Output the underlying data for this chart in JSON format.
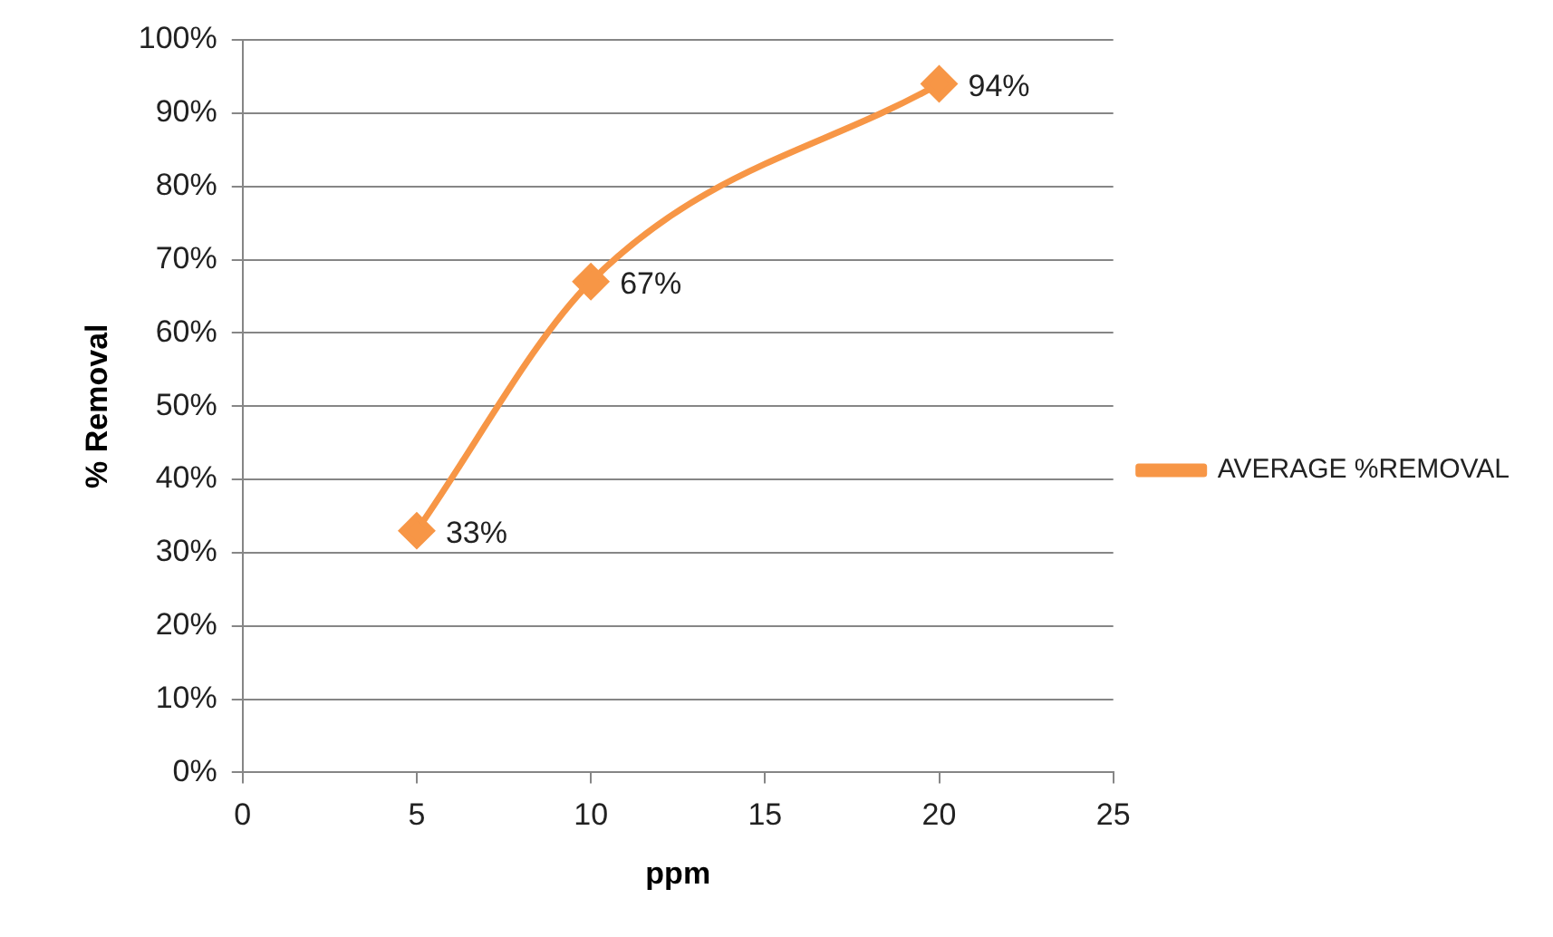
{
  "chart_data": {
    "type": "line",
    "xlabel": "ppm",
    "ylabel": "% Removal",
    "x": [
      5,
      10,
      20
    ],
    "series": [
      {
        "name": "AVERAGE %REMOVAL",
        "color": "#f79646",
        "values": [
          33,
          67,
          94
        ],
        "value_labels": [
          "33%",
          "67%",
          "94%"
        ]
      }
    ],
    "xlim": [
      0,
      25
    ],
    "xticks": [
      0,
      5,
      10,
      15,
      20,
      25
    ],
    "ylim": [
      0,
      100
    ],
    "yticks": [
      {
        "value": 0,
        "label": "0%"
      },
      {
        "value": 10,
        "label": "10%"
      },
      {
        "value": 20,
        "label": "20%"
      },
      {
        "value": 30,
        "label": "30%"
      },
      {
        "value": 40,
        "label": "40%"
      },
      {
        "value": 50,
        "label": "50%"
      },
      {
        "value": 60,
        "label": "60%"
      },
      {
        "value": 70,
        "label": "70%"
      },
      {
        "value": 80,
        "label": "80%"
      },
      {
        "value": 90,
        "label": "90%"
      },
      {
        "value": 100,
        "label": "100%"
      }
    ],
    "grid": "y",
    "legend": "right",
    "marker": "diamond",
    "line_style": "solid"
  }
}
